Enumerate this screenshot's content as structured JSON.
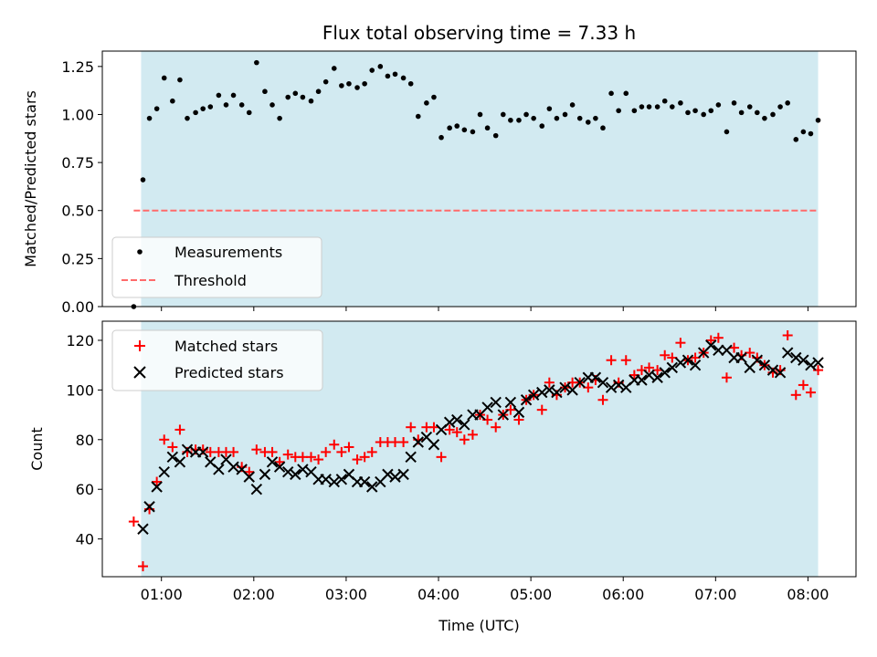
{
  "colors": {
    "band": "#add8e6",
    "measurement": "#000000",
    "threshold": "#ff6b6b",
    "matched": "#ff0000",
    "predicted": "#000000",
    "legend_bg": "#ffffff"
  },
  "chart_data": [
    {
      "type": "scatter",
      "title": "Flux total observing time = 7.33 h",
      "xlabel": "",
      "ylabel": "Matched/Predicted stars",
      "xlim": [
        0.36,
        8.52
      ],
      "ylim": [
        0,
        1.33
      ],
      "yticks": [
        0.0,
        0.25,
        0.5,
        0.75,
        1.0,
        1.25
      ],
      "ytick_labels": [
        "0.00",
        "0.25",
        "0.50",
        "0.75",
        "1.00",
        "1.25"
      ],
      "band": [
        0.78,
        8.11
      ],
      "legend_position": "lower-left",
      "threshold": {
        "name": "Threshold",
        "value": 0.5,
        "x": [
          0.7,
          8.11
        ]
      },
      "series": [
        {
          "name": "Measurements",
          "marker": "dot",
          "x": [
            0.7,
            0.8,
            0.87,
            0.95,
            1.03,
            1.12,
            1.2,
            1.28,
            1.37,
            1.45,
            1.53,
            1.62,
            1.7,
            1.78,
            1.87,
            1.95,
            2.03,
            2.12,
            2.2,
            2.28,
            2.37,
            2.45,
            2.53,
            2.62,
            2.7,
            2.78,
            2.87,
            2.95,
            3.03,
            3.12,
            3.2,
            3.28,
            3.37,
            3.45,
            3.53,
            3.62,
            3.7,
            3.78,
            3.87,
            3.95,
            4.03,
            4.12,
            4.2,
            4.28,
            4.37,
            4.45,
            4.53,
            4.62,
            4.7,
            4.78,
            4.87,
            4.95,
            5.03,
            5.12,
            5.2,
            5.28,
            5.37,
            5.45,
            5.53,
            5.62,
            5.7,
            5.78,
            5.87,
            5.95,
            6.03,
            6.12,
            6.2,
            6.28,
            6.37,
            6.45,
            6.53,
            6.62,
            6.7,
            6.78,
            6.87,
            6.95,
            7.03,
            7.12,
            7.2,
            7.28,
            7.37,
            7.45,
            7.53,
            7.62,
            7.7,
            7.78,
            7.87,
            7.95,
            8.03,
            8.11
          ],
          "y": [
            0.0,
            0.66,
            0.98,
            1.03,
            1.19,
            1.07,
            1.18,
            0.98,
            1.01,
            1.03,
            1.04,
            1.1,
            1.05,
            1.1,
            1.05,
            1.01,
            1.27,
            1.12,
            1.05,
            0.98,
            1.09,
            1.11,
            1.09,
            1.07,
            1.12,
            1.17,
            1.24,
            1.15,
            1.16,
            1.14,
            1.16,
            1.23,
            1.25,
            1.2,
            1.21,
            1.19,
            1.16,
            0.99,
            1.06,
            1.09,
            0.88,
            0.93,
            0.94,
            0.92,
            0.91,
            1.0,
            0.93,
            0.89,
            1.0,
            0.97,
            0.97,
            1.0,
            0.98,
            0.94,
            1.03,
            0.98,
            1.0,
            1.05,
            0.98,
            0.96,
            0.98,
            0.93,
            1.11,
            1.02,
            1.11,
            1.02,
            1.04,
            1.04,
            1.04,
            1.07,
            1.04,
            1.06,
            1.01,
            1.02,
            1.0,
            1.02,
            1.05,
            0.91,
            1.06,
            1.01,
            1.04,
            1.01,
            0.98,
            1.0,
            1.04,
            1.06,
            0.87,
            0.91,
            0.9,
            0.97
          ]
        }
      ]
    },
    {
      "type": "scatter",
      "title": "",
      "xlabel": "Time (UTC)",
      "ylabel": "Count",
      "xlim": [
        0.36,
        8.52
      ],
      "ylim": [
        24.8,
        127.7
      ],
      "yticks": [
        40,
        60,
        80,
        100,
        120
      ],
      "ytick_labels": [
        "40",
        "60",
        "80",
        "100",
        "120"
      ],
      "xticks": [
        1,
        2,
        3,
        4,
        5,
        6,
        7,
        8
      ],
      "xtick_labels": [
        "01:00",
        "02:00",
        "03:00",
        "04:00",
        "05:00",
        "06:00",
        "07:00",
        "08:00"
      ],
      "band": [
        0.78,
        8.11
      ],
      "legend_position": "upper-left",
      "series": [
        {
          "name": "Matched stars",
          "marker": "plus",
          "x": [
            0.7,
            0.8,
            0.87,
            0.95,
            1.03,
            1.12,
            1.2,
            1.28,
            1.37,
            1.45,
            1.53,
            1.62,
            1.7,
            1.78,
            1.87,
            1.95,
            2.03,
            2.12,
            2.2,
            2.28,
            2.37,
            2.45,
            2.53,
            2.62,
            2.7,
            2.78,
            2.87,
            2.95,
            3.03,
            3.12,
            3.2,
            3.28,
            3.37,
            3.45,
            3.53,
            3.62,
            3.7,
            3.78,
            3.87,
            3.95,
            4.03,
            4.12,
            4.2,
            4.28,
            4.37,
            4.45,
            4.53,
            4.62,
            4.7,
            4.78,
            4.87,
            4.95,
            5.03,
            5.12,
            5.2,
            5.28,
            5.37,
            5.45,
            5.53,
            5.62,
            5.7,
            5.78,
            5.87,
            5.95,
            6.03,
            6.12,
            6.2,
            6.28,
            6.37,
            6.45,
            6.53,
            6.62,
            6.7,
            6.78,
            6.87,
            6.95,
            7.03,
            7.12,
            7.2,
            7.28,
            7.37,
            7.45,
            7.53,
            7.62,
            7.7,
            7.78,
            7.87,
            7.95,
            8.03,
            8.11
          ],
          "y": [
            47,
            29,
            52,
            63,
            80,
            77,
            84,
            75,
            76,
            76,
            75,
            75,
            75,
            75,
            69,
            67,
            76,
            75,
            75,
            71,
            74,
            73,
            73,
            73,
            72,
            75,
            78,
            75,
            77,
            72,
            73,
            75,
            79,
            79,
            79,
            79,
            85,
            80,
            85,
            85,
            73,
            84,
            83,
            80,
            82,
            90,
            88,
            85,
            90,
            92,
            88,
            96,
            98,
            92,
            103,
            98,
            101,
            103,
            103,
            101,
            104,
            96,
            112,
            103,
            112,
            106,
            108,
            109,
            108,
            114,
            113,
            119,
            112,
            113,
            115,
            120,
            121,
            105,
            117,
            114,
            115,
            113,
            110,
            107,
            108,
            122,
            98,
            102,
            99,
            108
          ]
        },
        {
          "name": "Predicted stars",
          "marker": "x",
          "x": [
            0.8,
            0.87,
            0.95,
            1.03,
            1.12,
            1.2,
            1.28,
            1.37,
            1.45,
            1.53,
            1.62,
            1.7,
            1.78,
            1.87,
            1.95,
            2.03,
            2.12,
            2.2,
            2.28,
            2.37,
            2.45,
            2.53,
            2.62,
            2.7,
            2.78,
            2.87,
            2.95,
            3.03,
            3.12,
            3.2,
            3.28,
            3.37,
            3.45,
            3.53,
            3.62,
            3.7,
            3.78,
            3.87,
            3.95,
            4.03,
            4.12,
            4.2,
            4.28,
            4.37,
            4.45,
            4.53,
            4.62,
            4.7,
            4.78,
            4.87,
            4.95,
            5.03,
            5.12,
            5.2,
            5.28,
            5.37,
            5.45,
            5.53,
            5.62,
            5.7,
            5.78,
            5.87,
            5.95,
            6.03,
            6.12,
            6.2,
            6.28,
            6.37,
            6.45,
            6.53,
            6.62,
            6.7,
            6.78,
            6.87,
            6.95,
            7.03,
            7.12,
            7.2,
            7.28,
            7.37,
            7.45,
            7.53,
            7.62,
            7.7,
            7.78,
            7.87,
            7.95,
            8.03,
            8.11
          ],
          "y": [
            44,
            53,
            61,
            67,
            73,
            71,
            76,
            75,
            75,
            71,
            68,
            72,
            69,
            68,
            65,
            60,
            66,
            71,
            69,
            67,
            66,
            68,
            67,
            64,
            64,
            63,
            64,
            66,
            63,
            63,
            61,
            63,
            66,
            65,
            66,
            73,
            79,
            81,
            78,
            84,
            87,
            88,
            86,
            90,
            90,
            93,
            95,
            90,
            95,
            91,
            96,
            98,
            99,
            100,
            99,
            101,
            100,
            103,
            105,
            105,
            103,
            101,
            102,
            101,
            104,
            104,
            106,
            105,
            107,
            109,
            111,
            112,
            110,
            115,
            118,
            116,
            116,
            113,
            113,
            109,
            112,
            110,
            108,
            107,
            115,
            113,
            112,
            110,
            111
          ]
        }
      ]
    }
  ]
}
